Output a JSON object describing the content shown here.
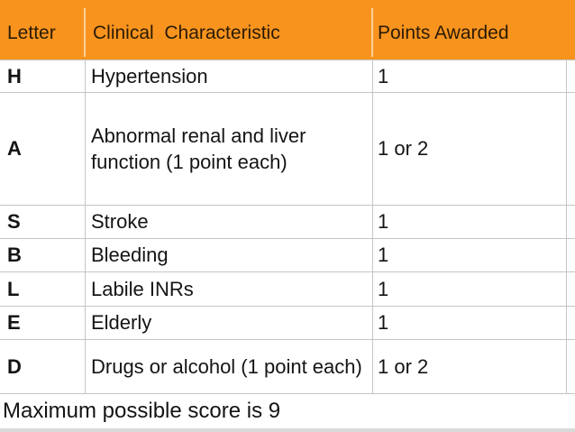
{
  "table": {
    "headers": {
      "letter": "Letter",
      "characteristic": "Clinical  Characteristic",
      "points": "Points Awarded"
    },
    "rows": [
      {
        "letter": "H",
        "characteristic": "Hypertension",
        "points": "1"
      },
      {
        "letter": "A",
        "characteristic": "Abnormal renal and liver function (1 point each)",
        "points": "1 or 2"
      },
      {
        "letter": "S",
        "characteristic": "Stroke",
        "points": "1"
      },
      {
        "letter": "B",
        "characteristic": "Bleeding",
        "points": "1"
      },
      {
        "letter": "L",
        "characteristic": "Labile INRs",
        "points": "1"
      },
      {
        "letter": "E",
        "characteristic": "Elderly",
        "points": "1"
      },
      {
        "letter": "D",
        "characteristic": "Drugs or alcohol (1 point each)",
        "points": "1 or 2"
      }
    ],
    "footer": "Maximum possible score is 9"
  },
  "colors": {
    "header_bg": "#F8941E",
    "header_text": "#2B1A05",
    "body_text": "#141414",
    "border": "#C5C5C5"
  }
}
